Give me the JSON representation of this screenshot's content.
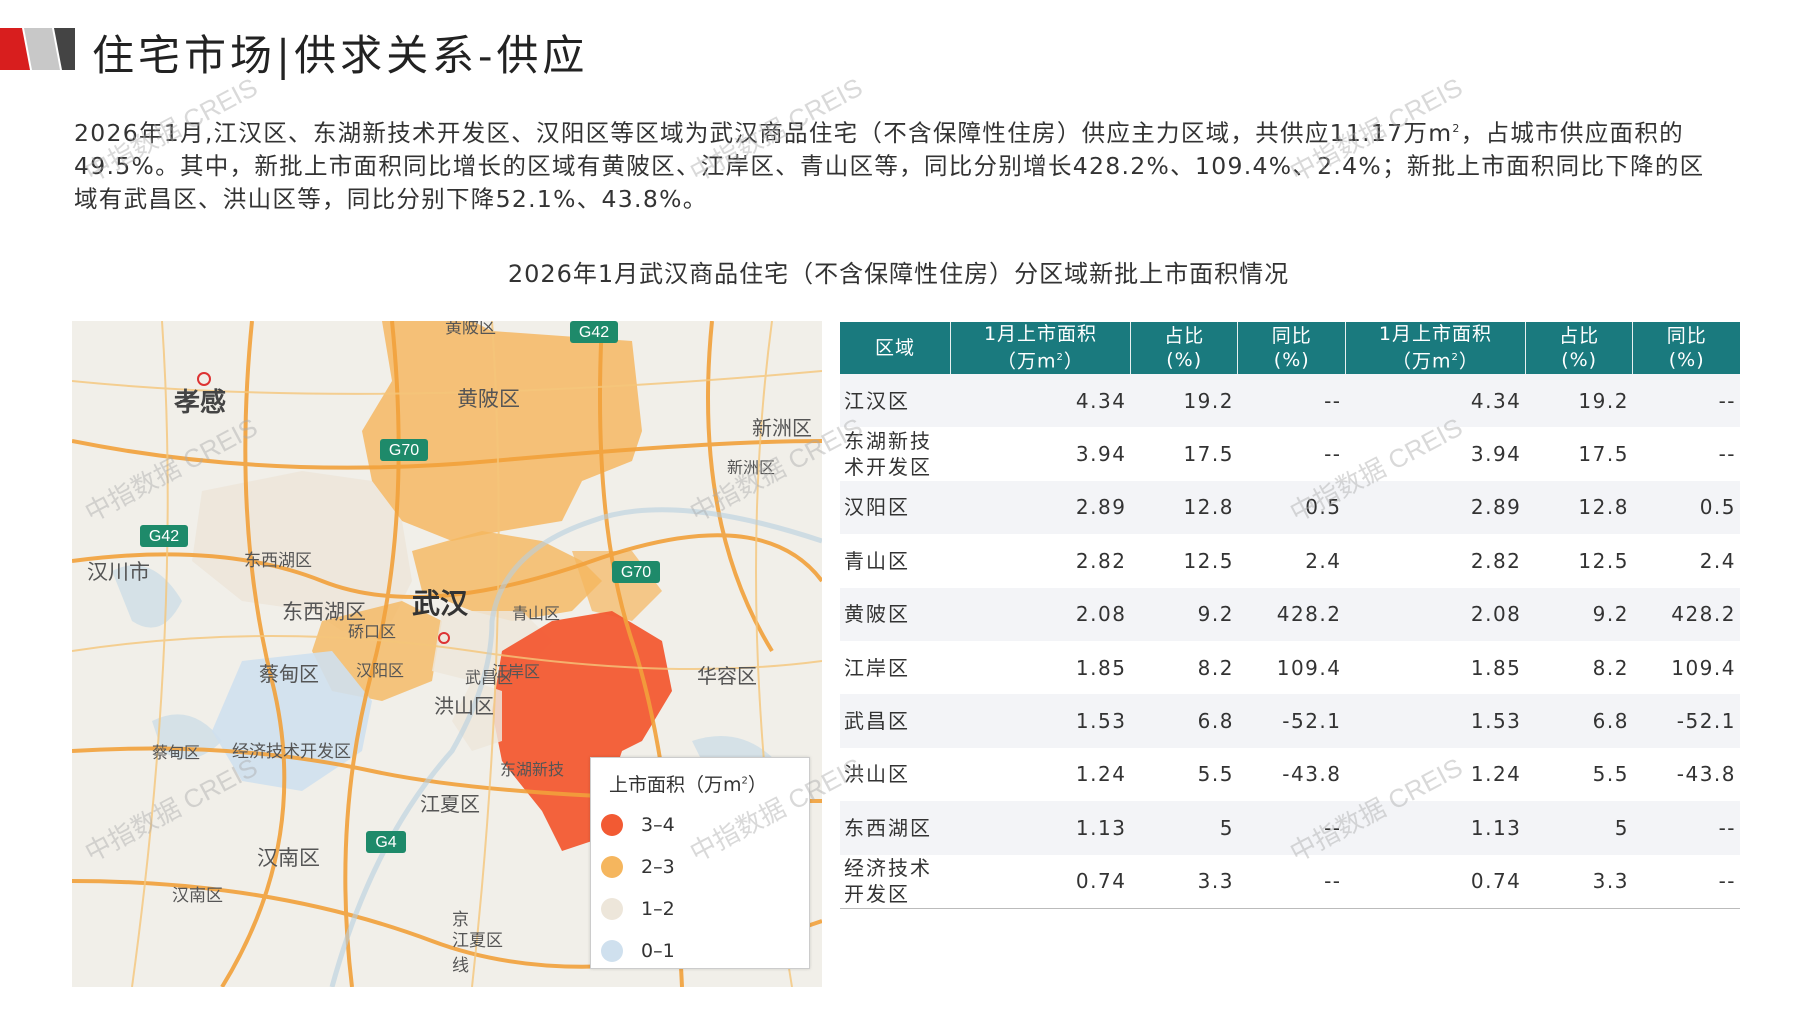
{
  "header": {
    "title": "住宅市场|供求关系-供应"
  },
  "summary": {
    "text_before_unit": "2026年1月,江汉区、东湖新技术开发区、汉阳区等区域为武汉商品住宅（不含保障性住房）供应主力区域，共供应11.17万m",
    "unit_sup": "2",
    "text_after_unit": "，占城市供应面积的49.5%。其中，新批上市面积同比增长的区域有黄陂区、江岸区、青山区等，同比分别增长428.2%、109.4%、2.4%；新批上市面积同比下降的区域有武昌区、洪山区等，同比分别下降52.1%、43.8%。"
  },
  "chart_title": "2026年1月武汉商品住宅（不含保障性住房）分区域新批上市面积情况",
  "map": {
    "labels": {
      "xiaogan": "孝感",
      "huangpi": "黄陂区",
      "wuhan": "武汉",
      "dongxihu": "东西湖区",
      "dongxihu2": "东西湖区",
      "hanchuan": "汉川市",
      "caidian": "蔡甸区",
      "hanyang": "汉阳区",
      "hongshan": "洪山区",
      "huarong": "华容区",
      "jiangxia": "江夏区",
      "hannan": "汉南区",
      "hannan2": "汉南区",
      "xinzhou": "新洲区",
      "xinzhou2": "新洲区",
      "qingshan": "青山区",
      "jingji": "经济技术开发区",
      "caidian2": "蔡甸区",
      "donghu": "东湖新技",
      "wuchang": "武昌区",
      "jiangan": "江岸区",
      "qiaokou": "硚口区",
      "huangpi_top": "黄陂区",
      "jiangxia2": "江夏区",
      "jing": "京",
      "xian": "线"
    },
    "shields": [
      "G42",
      "G70",
      "G42",
      "G70",
      "G4"
    ],
    "legend_title": "上市面积（万m",
    "legend_title_sup": "2",
    "legend_title_end": "）",
    "legend": [
      {
        "label": "3–4",
        "color": "#f25a33"
      },
      {
        "label": "2–3",
        "color": "#f5b65e"
      },
      {
        "label": "1–2",
        "color": "#ede6da"
      },
      {
        "label": "0–1",
        "color": "#cfe0ee"
      }
    ]
  },
  "table": {
    "headers": [
      "区域",
      "1月上市面积",
      "占比",
      "同比",
      "1月上市面积",
      "占比",
      "同比"
    ],
    "header_units": [
      "",
      "（万m",
      "(%)",
      "(%)",
      "（万m",
      "(%)",
      "(%)"
    ],
    "header_unit_sup": "2",
    "header_unit_end": "）",
    "rows": [
      {
        "region": "江汉区",
        "area": "4.34",
        "share": "19.2",
        "yoy": "--",
        "area2": "4.34",
        "share2": "19.2",
        "yoy2": "--"
      },
      {
        "region": "东湖新技术开发区",
        "area": "3.94",
        "share": "17.5",
        "yoy": "--",
        "area2": "3.94",
        "share2": "17.5",
        "yoy2": "--"
      },
      {
        "region": "汉阳区",
        "area": "2.89",
        "share": "12.8",
        "yoy": "0.5",
        "area2": "2.89",
        "share2": "12.8",
        "yoy2": "0.5"
      },
      {
        "region": "青山区",
        "area": "2.82",
        "share": "12.5",
        "yoy": "2.4",
        "area2": "2.82",
        "share2": "12.5",
        "yoy2": "2.4"
      },
      {
        "region": "黄陂区",
        "area": "2.08",
        "share": "9.2",
        "yoy": "428.2",
        "area2": "2.08",
        "share2": "9.2",
        "yoy2": "428.2"
      },
      {
        "region": "江岸区",
        "area": "1.85",
        "share": "8.2",
        "yoy": "109.4",
        "area2": "1.85",
        "share2": "8.2",
        "yoy2": "109.4"
      },
      {
        "region": "武昌区",
        "area": "1.53",
        "share": "6.8",
        "yoy": "-52.1",
        "area2": "1.53",
        "share2": "6.8",
        "yoy2": "-52.1"
      },
      {
        "region": "洪山区",
        "area": "1.24",
        "share": "5.5",
        "yoy": "-43.8",
        "area2": "1.24",
        "share2": "5.5",
        "yoy2": "-43.8"
      },
      {
        "region": "东西湖区",
        "area": "1.13",
        "share": "5",
        "yoy": "--",
        "area2": "1.13",
        "share2": "5",
        "yoy2": "--"
      },
      {
        "region": "经济技术开发区",
        "area": "0.74",
        "share": "3.3",
        "yoy": "--",
        "area2": "0.74",
        "share2": "3.3",
        "yoy2": "--"
      }
    ]
  },
  "watermark": "中指数据 CREIS"
}
